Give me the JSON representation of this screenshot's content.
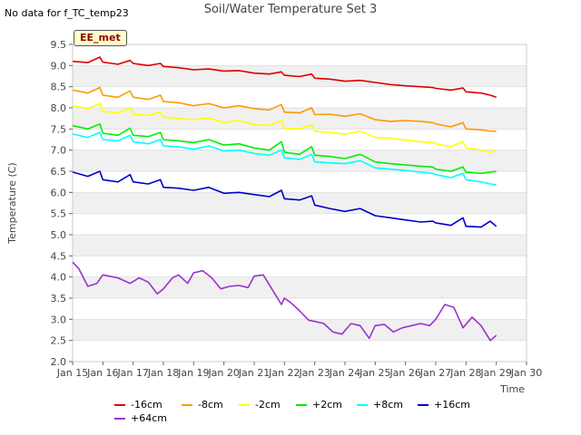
{
  "note": "No data for f_TC_temp23",
  "badge": "EE_met",
  "chart_data": {
    "type": "line",
    "title": "Soil/Water Temperature Set 3",
    "xlabel": "Time",
    "ylabel": "Temperature (C)",
    "ylim": [
      2.0,
      9.5
    ],
    "yticks": [
      "2.0",
      "2.5",
      "3.0",
      "3.5",
      "4.0",
      "4.5",
      "5.0",
      "5.5",
      "6.0",
      "6.5",
      "7.0",
      "7.5",
      "8.0",
      "8.5",
      "9.0",
      "9.5"
    ],
    "xlim": [
      15,
      30
    ],
    "xticks": [
      "Jan 15",
      "Jan 16",
      "Jan 17",
      "Jan 18",
      "Jan 19",
      "Jan 20",
      "Jan 21",
      "Jan 22",
      "Jan 23",
      "Jan 24",
      "Jan 25",
      "Jan 26",
      "Jan 27",
      "Jan 28",
      "Jan 29",
      "Jan 30"
    ],
    "grid": "alternating horizontal bands",
    "legend_position": "bottom",
    "series": [
      {
        "name": "-16cm",
        "color": "#dd0000",
        "x": [
          15.0,
          15.5,
          15.9,
          16.0,
          16.5,
          16.9,
          17.0,
          17.5,
          17.9,
          18.0,
          18.5,
          19.0,
          19.5,
          20.0,
          20.5,
          21.0,
          21.5,
          21.9,
          22.0,
          22.5,
          22.9,
          23.0,
          23.5,
          24.0,
          24.5,
          25.0,
          25.5,
          26.0,
          26.5,
          26.9,
          27.0,
          27.5,
          27.9,
          28.0,
          28.5,
          28.8,
          29.0
        ],
        "y": [
          9.1,
          9.07,
          9.2,
          9.08,
          9.03,
          9.12,
          9.05,
          9.0,
          9.05,
          8.98,
          8.95,
          8.9,
          8.92,
          8.87,
          8.88,
          8.82,
          8.8,
          8.85,
          8.77,
          8.74,
          8.8,
          8.7,
          8.68,
          8.63,
          8.65,
          8.6,
          8.55,
          8.52,
          8.5,
          8.48,
          8.46,
          8.42,
          8.47,
          8.38,
          8.35,
          8.3,
          8.25
        ]
      },
      {
        "name": "-8cm",
        "color": "#ff9900",
        "x": [
          15.0,
          15.5,
          15.9,
          16.0,
          16.5,
          16.9,
          17.0,
          17.5,
          17.9,
          18.0,
          18.5,
          19.0,
          19.5,
          20.0,
          20.5,
          21.0,
          21.5,
          21.9,
          22.0,
          22.5,
          22.9,
          23.0,
          23.5,
          24.0,
          24.5,
          25.0,
          25.5,
          26.0,
          26.5,
          26.9,
          27.0,
          27.5,
          27.9,
          28.0,
          28.5,
          28.8,
          29.0
        ],
        "y": [
          8.42,
          8.35,
          8.48,
          8.3,
          8.25,
          8.4,
          8.25,
          8.2,
          8.3,
          8.15,
          8.12,
          8.05,
          8.1,
          8.0,
          8.05,
          7.98,
          7.95,
          8.08,
          7.9,
          7.88,
          8.0,
          7.84,
          7.85,
          7.8,
          7.86,
          7.72,
          7.68,
          7.7,
          7.68,
          7.65,
          7.62,
          7.55,
          7.65,
          7.5,
          7.48,
          7.45,
          7.45
        ]
      },
      {
        "name": "-2cm",
        "color": "#ffff00",
        "x": [
          15.0,
          15.5,
          15.9,
          16.0,
          16.5,
          16.9,
          17.0,
          17.5,
          17.9,
          18.0,
          18.5,
          19.0,
          19.5,
          20.0,
          20.5,
          21.0,
          21.5,
          21.9,
          22.0,
          22.5,
          22.9,
          23.0,
          23.5,
          24.0,
          24.5,
          25.0,
          25.5,
          26.0,
          26.5,
          26.9,
          27.0,
          27.5,
          27.9,
          28.0,
          28.5,
          28.8,
          29.0
        ],
        "y": [
          8.05,
          7.98,
          8.1,
          7.92,
          7.88,
          8.0,
          7.85,
          7.82,
          7.9,
          7.78,
          7.75,
          7.72,
          7.76,
          7.65,
          7.7,
          7.6,
          7.58,
          7.7,
          7.52,
          7.5,
          7.6,
          7.45,
          7.42,
          7.38,
          7.45,
          7.3,
          7.28,
          7.24,
          7.2,
          7.18,
          7.15,
          7.08,
          7.2,
          7.05,
          7.0,
          6.95,
          7.0
        ]
      },
      {
        "name": "+2cm",
        "color": "#00ee00",
        "x": [
          15.0,
          15.5,
          15.9,
          16.0,
          16.5,
          16.9,
          17.0,
          17.5,
          17.9,
          18.0,
          18.5,
          19.0,
          19.5,
          20.0,
          20.5,
          21.0,
          21.5,
          21.9,
          22.0,
          22.5,
          22.9,
          23.0,
          23.5,
          24.0,
          24.5,
          25.0,
          25.5,
          26.0,
          26.5,
          26.9,
          27.0,
          27.5,
          27.9,
          28.0,
          28.5,
          28.8,
          29.0
        ],
        "y": [
          7.58,
          7.5,
          7.62,
          7.4,
          7.35,
          7.52,
          7.35,
          7.32,
          7.42,
          7.25,
          7.22,
          7.18,
          7.25,
          7.12,
          7.15,
          7.05,
          7.0,
          7.2,
          6.95,
          6.9,
          7.08,
          6.88,
          6.85,
          6.8,
          6.9,
          6.72,
          6.68,
          6.65,
          6.62,
          6.6,
          6.55,
          6.5,
          6.6,
          6.48,
          6.45,
          6.48,
          6.5
        ]
      },
      {
        "name": "+8cm",
        "color": "#00ffff",
        "x": [
          15.0,
          15.5,
          15.9,
          16.0,
          16.5,
          16.9,
          17.0,
          17.5,
          17.9,
          18.0,
          18.5,
          19.0,
          19.5,
          20.0,
          20.5,
          21.0,
          21.5,
          21.9,
          22.0,
          22.5,
          22.9,
          23.0,
          23.5,
          24.0,
          24.5,
          25.0,
          25.5,
          26.0,
          26.5,
          26.9,
          27.0,
          27.5,
          27.9,
          28.0,
          28.5,
          28.8,
          29.0
        ],
        "y": [
          7.38,
          7.3,
          7.42,
          7.25,
          7.22,
          7.35,
          7.2,
          7.15,
          7.25,
          7.1,
          7.08,
          7.02,
          7.1,
          6.98,
          7.0,
          6.92,
          6.88,
          7.0,
          6.82,
          6.78,
          6.9,
          6.72,
          6.7,
          6.68,
          6.75,
          6.58,
          6.55,
          6.52,
          6.48,
          6.45,
          6.42,
          6.35,
          6.45,
          6.3,
          6.25,
          6.2,
          6.18
        ]
      },
      {
        "name": "+16cm",
        "color": "#0000cc",
        "x": [
          15.0,
          15.5,
          15.9,
          16.0,
          16.5,
          16.9,
          17.0,
          17.5,
          17.9,
          18.0,
          18.5,
          19.0,
          19.5,
          20.0,
          20.5,
          21.0,
          21.5,
          21.9,
          22.0,
          22.5,
          22.9,
          23.0,
          23.5,
          24.0,
          24.5,
          25.0,
          25.5,
          26.0,
          26.5,
          26.9,
          27.0,
          27.5,
          27.9,
          28.0,
          28.5,
          28.8,
          29.0
        ],
        "y": [
          6.48,
          6.38,
          6.5,
          6.3,
          6.25,
          6.42,
          6.25,
          6.2,
          6.3,
          6.12,
          6.1,
          6.05,
          6.12,
          5.98,
          6.0,
          5.95,
          5.9,
          6.05,
          5.85,
          5.82,
          5.92,
          5.7,
          5.62,
          5.55,
          5.62,
          5.45,
          5.4,
          5.35,
          5.3,
          5.32,
          5.28,
          5.22,
          5.4,
          5.2,
          5.18,
          5.32,
          5.2
        ]
      },
      {
        "name": "+64cm",
        "color": "#9933cc",
        "x": [
          15.0,
          15.2,
          15.5,
          15.8,
          16.0,
          16.5,
          16.9,
          17.2,
          17.5,
          17.8,
          18.0,
          18.3,
          18.5,
          18.8,
          19.0,
          19.3,
          19.6,
          19.9,
          20.2,
          20.5,
          20.8,
          21.0,
          21.3,
          21.6,
          21.9,
          22.0,
          22.2,
          22.5,
          22.8,
          23.0,
          23.3,
          23.6,
          23.9,
          24.2,
          24.5,
          24.8,
          25.0,
          25.3,
          25.6,
          25.9,
          26.2,
          26.5,
          26.8,
          27.0,
          27.3,
          27.6,
          27.9,
          28.2,
          28.5,
          28.8,
          29.0
        ],
        "y": [
          4.35,
          4.2,
          3.78,
          3.85,
          4.05,
          3.98,
          3.85,
          3.98,
          3.88,
          3.6,
          3.72,
          3.98,
          4.05,
          3.85,
          4.1,
          4.15,
          3.98,
          3.72,
          3.78,
          3.8,
          3.75,
          4.02,
          4.05,
          3.7,
          3.35,
          3.5,
          3.4,
          3.2,
          2.98,
          2.95,
          2.9,
          2.7,
          2.65,
          2.9,
          2.85,
          2.55,
          2.85,
          2.88,
          2.7,
          2.8,
          2.85,
          2.9,
          2.85,
          3.0,
          3.35,
          3.28,
          2.8,
          3.05,
          2.85,
          2.5,
          2.62
        ]
      }
    ]
  }
}
